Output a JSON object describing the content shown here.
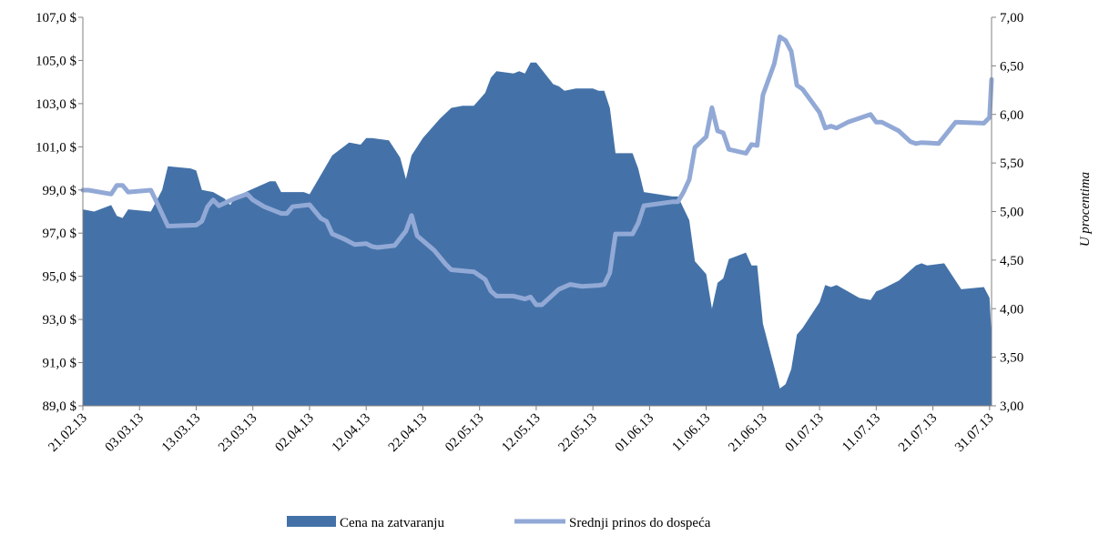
{
  "chart_data": {
    "type": "area",
    "x_start": "21.02.13",
    "x_end": "31.07.13",
    "x_tick_labels": [
      "21.02.13",
      "03.03.13",
      "13.03.13",
      "23.03.13",
      "02.04.13",
      "12.04.13",
      "22.04.13",
      "02.05.13",
      "12.05.13",
      "22.05.13",
      "01.06.13",
      "11.06.13",
      "21.06.13",
      "01.07.13",
      "11.07.13",
      "21.07.13",
      "31.07.13"
    ],
    "y_left": {
      "ylim": [
        89.0,
        107.0
      ],
      "tick_labels": [
        "89,0 $",
        "91,0 $",
        "93,0 $",
        "95,0 $",
        "97,0 $",
        "99,0 $",
        "101,0 $",
        "103,0 $",
        "105,0 $",
        "107,0 $"
      ]
    },
    "y_right": {
      "label": "U procentima",
      "ylim": [
        3.0,
        7.0
      ],
      "tick_labels": [
        "3,00",
        "3,50",
        "4,00",
        "4,50",
        "5,00",
        "5,50",
        "6,00",
        "6,50",
        "7,00"
      ]
    },
    "colors": {
      "area": "#4472a8",
      "line": "#92a9d6",
      "axis": "#808080"
    },
    "legend_position": "bottom",
    "series": [
      {
        "name": "Cena na zatvaranju",
        "type": "area",
        "axis": "left",
        "points": [
          [
            "21.02.13",
            98.1
          ],
          [
            "23.02.13",
            98.0
          ],
          [
            "26.02.13",
            98.3
          ],
          [
            "27.02.13",
            97.8
          ],
          [
            "28.02.13",
            97.7
          ],
          [
            "01.03.13",
            98.1
          ],
          [
            "05.03.13",
            98.0
          ],
          [
            "07.03.13",
            99.0
          ],
          [
            "08.03.13",
            100.1
          ],
          [
            "12.03.13",
            100.0
          ],
          [
            "13.03.13",
            99.9
          ],
          [
            "14.03.13",
            99.0
          ],
          [
            "16.03.13",
            98.9
          ],
          [
            "18.03.13",
            98.6
          ],
          [
            "19.03.13",
            98.3
          ],
          [
            "20.03.13",
            98.7
          ],
          [
            "26.03.13",
            99.4
          ],
          [
            "27.03.13",
            99.4
          ],
          [
            "28.03.13",
            98.9
          ],
          [
            "01.04.13",
            98.9
          ],
          [
            "02.04.13",
            98.8
          ],
          [
            "04.04.13",
            99.7
          ],
          [
            "06.04.13",
            100.6
          ],
          [
            "09.04.13",
            101.2
          ],
          [
            "11.04.13",
            101.1
          ],
          [
            "12.04.13",
            101.4
          ],
          [
            "13.04.13",
            101.4
          ],
          [
            "16.04.13",
            101.3
          ],
          [
            "18.04.13",
            100.5
          ],
          [
            "19.04.13",
            99.5
          ],
          [
            "20.04.13",
            100.6
          ],
          [
            "22.04.13",
            101.4
          ],
          [
            "25.04.13",
            102.3
          ],
          [
            "27.04.13",
            102.8
          ],
          [
            "29.04.13",
            102.9
          ],
          [
            "01.05.13",
            102.9
          ],
          [
            "03.05.13",
            103.5
          ],
          [
            "04.05.13",
            104.2
          ],
          [
            "05.05.13",
            104.5
          ],
          [
            "08.05.13",
            104.4
          ],
          [
            "09.05.13",
            104.5
          ],
          [
            "10.05.13",
            104.4
          ],
          [
            "11.05.13",
            104.9
          ],
          [
            "12.05.13",
            104.9
          ],
          [
            "15.05.13",
            103.9
          ],
          [
            "16.05.13",
            103.8
          ],
          [
            "17.05.13",
            103.6
          ],
          [
            "19.05.13",
            103.7
          ],
          [
            "22.05.13",
            103.7
          ],
          [
            "23.05.13",
            103.6
          ],
          [
            "24.05.13",
            103.6
          ],
          [
            "25.05.13",
            102.8
          ],
          [
            "26.05.13",
            100.7
          ],
          [
            "29.05.13",
            100.7
          ],
          [
            "30.05.13",
            100.0
          ],
          [
            "31.05.13",
            98.9
          ],
          [
            "05.06.13",
            98.7
          ],
          [
            "06.06.13",
            98.7
          ],
          [
            "08.06.13",
            97.6
          ],
          [
            "09.06.13",
            95.7
          ],
          [
            "11.06.13",
            95.1
          ],
          [
            "12.06.13",
            93.5
          ],
          [
            "13.06.13",
            94.7
          ],
          [
            "14.06.13",
            94.9
          ],
          [
            "15.06.13",
            95.8
          ],
          [
            "18.06.13",
            96.1
          ],
          [
            "19.06.13",
            95.5
          ],
          [
            "20.06.13",
            95.5
          ],
          [
            "21.06.13",
            92.8
          ],
          [
            "24.06.13",
            89.8
          ],
          [
            "25.06.13",
            90.0
          ],
          [
            "26.06.13",
            90.7
          ],
          [
            "27.06.13",
            92.3
          ],
          [
            "28.06.13",
            92.6
          ],
          [
            "01.07.13",
            93.8
          ],
          [
            "02.07.13",
            94.6
          ],
          [
            "03.07.13",
            94.5
          ],
          [
            "04.07.13",
            94.6
          ],
          [
            "06.07.13",
            94.3
          ],
          [
            "08.07.13",
            94.0
          ],
          [
            "10.07.13",
            93.9
          ],
          [
            "11.07.13",
            94.3
          ],
          [
            "12.07.13",
            94.4
          ],
          [
            "15.07.13",
            94.8
          ],
          [
            "18.07.13",
            95.5
          ],
          [
            "19.07.13",
            95.6
          ],
          [
            "20.07.13",
            95.5
          ],
          [
            "23.07.13",
            95.6
          ],
          [
            "26.07.13",
            94.4
          ],
          [
            "30.07.13",
            94.5
          ],
          [
            "31.07.13",
            94.0
          ],
          [
            "31.07.13",
            92.2
          ]
        ]
      },
      {
        "name": "Srednji prinos do dospeća",
        "type": "line",
        "axis": "right",
        "points": [
          [
            "21.02.13",
            5.22
          ],
          [
            "22.02.13",
            5.22
          ],
          [
            "26.02.13",
            5.18
          ],
          [
            "27.02.13",
            5.27
          ],
          [
            "28.02.13",
            5.27
          ],
          [
            "01.03.13",
            5.2
          ],
          [
            "05.03.13",
            5.22
          ],
          [
            "06.03.13",
            5.1
          ],
          [
            "08.03.13",
            4.85
          ],
          [
            "13.03.13",
            4.86
          ],
          [
            "14.03.13",
            4.9
          ],
          [
            "15.03.13",
            5.05
          ],
          [
            "16.03.13",
            5.12
          ],
          [
            "17.03.13",
            5.06
          ],
          [
            "20.03.13",
            5.14
          ],
          [
            "22.03.13",
            5.18
          ],
          [
            "23.03.13",
            5.12
          ],
          [
            "25.03.13",
            5.05
          ],
          [
            "28.03.13",
            4.98
          ],
          [
            "29.03.13",
            4.98
          ],
          [
            "30.03.13",
            5.05
          ],
          [
            "02.04.13",
            5.07
          ],
          [
            "04.04.13",
            4.93
          ],
          [
            "05.04.13",
            4.9
          ],
          [
            "06.04.13",
            4.77
          ],
          [
            "08.04.13",
            4.72
          ],
          [
            "10.04.13",
            4.66
          ],
          [
            "12.04.13",
            4.67
          ],
          [
            "13.04.13",
            4.64
          ],
          [
            "14.04.13",
            4.63
          ],
          [
            "17.04.13",
            4.65
          ],
          [
            "19.04.13",
            4.8
          ],
          [
            "20.04.13",
            4.96
          ],
          [
            "21.04.13",
            4.75
          ],
          [
            "24.04.13",
            4.6
          ],
          [
            "26.04.13",
            4.46
          ],
          [
            "27.04.13",
            4.4
          ],
          [
            "01.05.13",
            4.38
          ],
          [
            "03.05.13",
            4.3
          ],
          [
            "04.05.13",
            4.18
          ],
          [
            "05.05.13",
            4.13
          ],
          [
            "08.05.13",
            4.13
          ],
          [
            "10.05.13",
            4.1
          ],
          [
            "11.05.13",
            4.12
          ],
          [
            "12.05.13",
            4.04
          ],
          [
            "13.05.13",
            4.04
          ],
          [
            "16.05.13",
            4.2
          ],
          [
            "18.05.13",
            4.25
          ],
          [
            "20.05.13",
            4.23
          ],
          [
            "23.05.13",
            4.24
          ],
          [
            "24.05.13",
            4.25
          ],
          [
            "25.05.13",
            4.37
          ],
          [
            "26.05.13",
            4.77
          ],
          [
            "29.05.13",
            4.77
          ],
          [
            "30.05.13",
            4.88
          ],
          [
            "31.05.13",
            5.06
          ],
          [
            "05.06.13",
            5.1
          ],
          [
            "06.06.13",
            5.1
          ],
          [
            "07.06.13",
            5.2
          ],
          [
            "08.06.13",
            5.33
          ],
          [
            "09.06.13",
            5.66
          ],
          [
            "11.06.13",
            5.77
          ],
          [
            "12.06.13",
            6.07
          ],
          [
            "13.06.13",
            5.83
          ],
          [
            "14.06.13",
            5.81
          ],
          [
            "15.06.13",
            5.64
          ],
          [
            "18.06.13",
            5.6
          ],
          [
            "19.06.13",
            5.69
          ],
          [
            "20.06.13",
            5.68
          ],
          [
            "21.06.13",
            6.2
          ],
          [
            "23.06.13",
            6.52
          ],
          [
            "24.06.13",
            6.8
          ],
          [
            "25.06.13",
            6.76
          ],
          [
            "26.06.13",
            6.65
          ],
          [
            "27.06.13",
            6.3
          ],
          [
            "28.06.13",
            6.26
          ],
          [
            "01.07.13",
            6.02
          ],
          [
            "02.07.13",
            5.86
          ],
          [
            "03.07.13",
            5.88
          ],
          [
            "04.07.13",
            5.86
          ],
          [
            "06.07.13",
            5.92
          ],
          [
            "08.07.13",
            5.96
          ],
          [
            "10.07.13",
            6.0
          ],
          [
            "11.07.13",
            5.92
          ],
          [
            "12.07.13",
            5.92
          ],
          [
            "15.07.13",
            5.83
          ],
          [
            "17.07.13",
            5.72
          ],
          [
            "18.07.13",
            5.7
          ],
          [
            "19.07.13",
            5.71
          ],
          [
            "22.07.13",
            5.7
          ],
          [
            "25.07.13",
            5.92
          ],
          [
            "30.07.13",
            5.91
          ],
          [
            "31.07.13",
            5.97
          ],
          [
            "31.07.13",
            6.36
          ]
        ]
      }
    ]
  }
}
